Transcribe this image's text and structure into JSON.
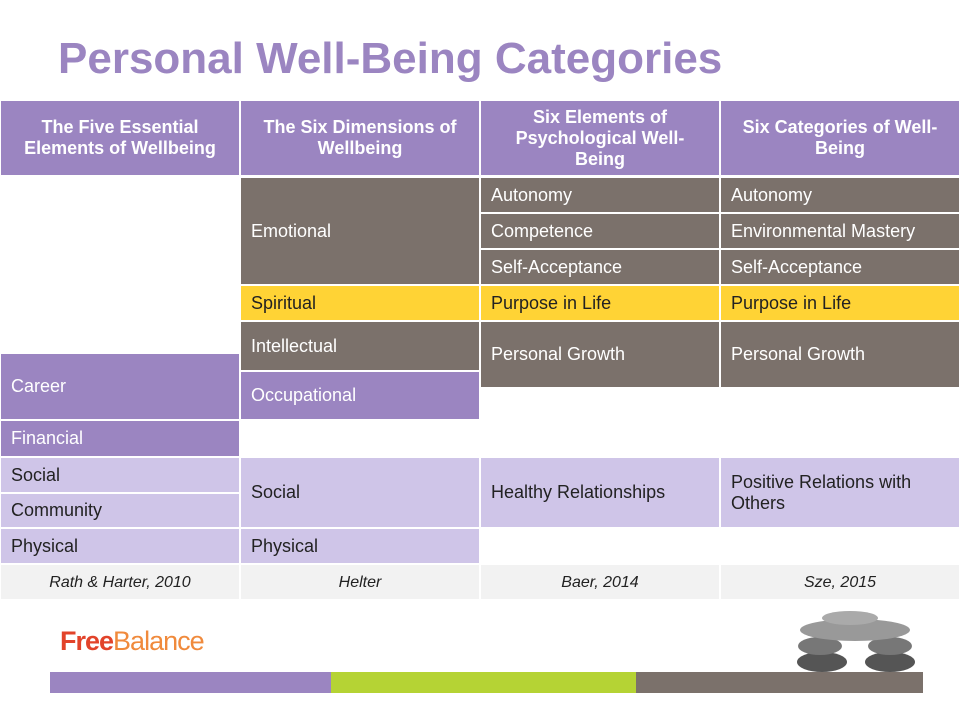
{
  "header": {
    "title": "Personal Well-Being Categories"
  },
  "table": {
    "headers": [
      "The Five Essential Elements of Wellbeing",
      "The Six Dimensions of Wellbeing",
      "Six Elements of Psychological Well-Being",
      "Six Categories of Well-Being"
    ],
    "col1": [
      "Career",
      "Financial",
      "Social",
      "Community",
      "Physical"
    ],
    "col2": [
      "Emotional",
      "Spiritual",
      "Intellectual",
      "Occupational",
      "Social",
      "Physical"
    ],
    "col3": [
      "Autonomy",
      "Competence",
      "Self-Acceptance",
      "Purpose in Life",
      "Personal Growth",
      "Healthy Relationships"
    ],
    "col4": [
      "Autonomy",
      "Environmental Mastery",
      "Self-Acceptance",
      "Purpose in Life",
      "Personal Growth",
      "Positive Relations with Others"
    ],
    "sources": [
      "Rath & Harter, 2010",
      "Helter",
      "Baer, 2014",
      "Sze, 2015"
    ]
  },
  "logo": [
    "Free",
    "Balance"
  ]
}
